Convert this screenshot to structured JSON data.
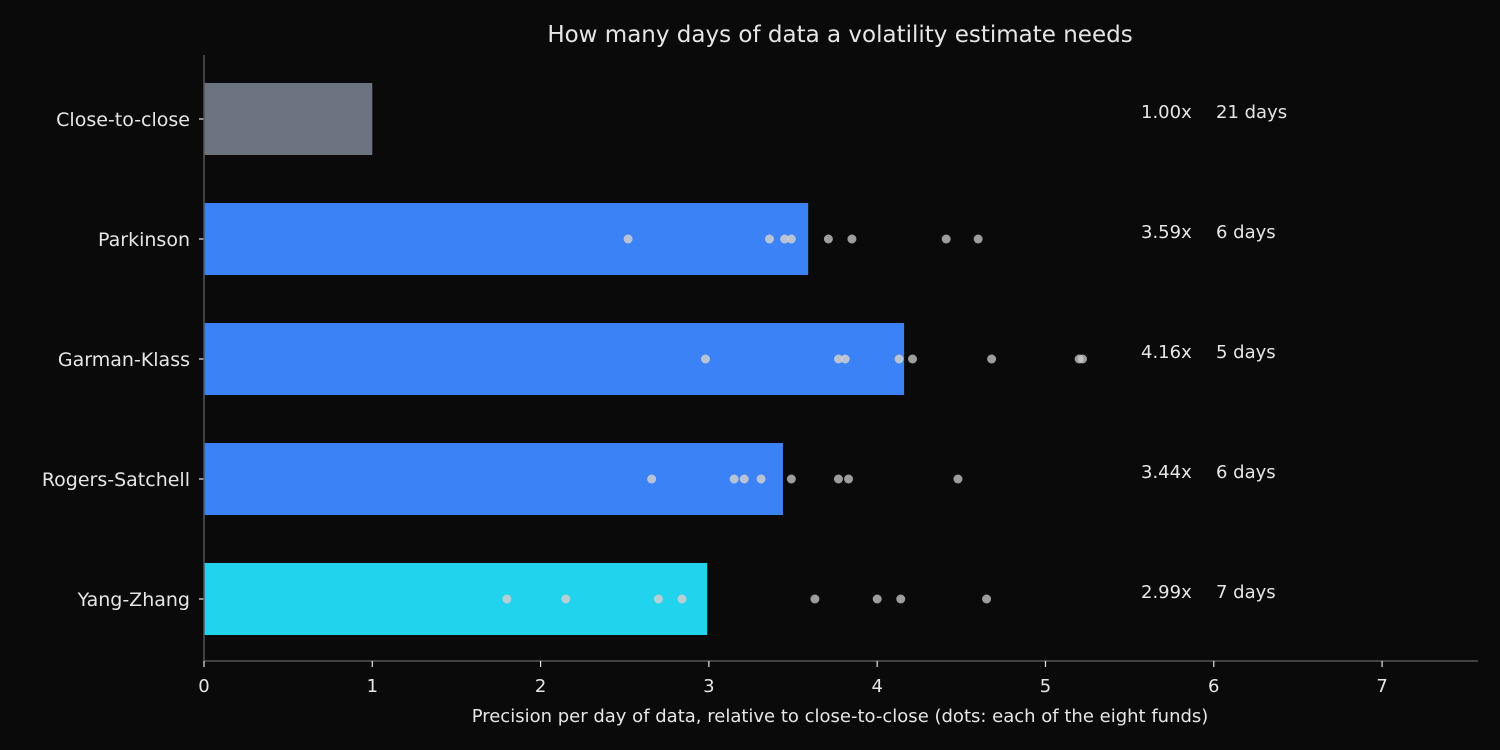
{
  "chart_data": {
    "type": "bar",
    "orientation": "horizontal",
    "title": "How many days of data a volatility estimate needs",
    "xlabel": "Precision per day of data, relative to close-to-close (dots: each of the eight funds)",
    "ylabel": "",
    "xlim": [
      0,
      7.57
    ],
    "x_ticks": [
      0,
      1,
      2,
      3,
      4,
      5,
      6,
      7
    ],
    "grid": false,
    "categories": [
      "Close-to-close",
      "Parkinson",
      "Garman-Klass",
      "Rogers-Satchell",
      "Yang-Zhang"
    ],
    "values": [
      1.0,
      3.59,
      4.16,
      3.44,
      2.99
    ],
    "value_labels": [
      "1.00x",
      "3.59x",
      "4.16x",
      "3.44x",
      "2.99x"
    ],
    "days_labels": [
      "21 days",
      "6 days",
      "5 days",
      "6 days",
      "7 days"
    ],
    "bar_colors": [
      "#6b7280",
      "#3b82f6",
      "#3b82f6",
      "#3b82f6",
      "#22d3ee"
    ],
    "fund_points": [
      [],
      [
        2.52,
        3.36,
        3.45,
        3.49,
        3.71,
        3.85,
        4.41,
        4.6
      ],
      [
        2.98,
        3.77,
        3.81,
        4.13,
        4.21,
        4.68,
        5.2,
        5.22
      ],
      [
        2.66,
        3.15,
        3.21,
        3.31,
        3.49,
        3.77,
        3.83,
        4.48
      ],
      [
        1.8,
        2.15,
        2.7,
        2.84,
        3.63,
        4.0,
        4.14,
        4.65
      ]
    ],
    "colors": {
      "background": "#0a0a0b",
      "text": "#e6e6e6",
      "axis": "#555555",
      "dot": "#cfcfcf"
    }
  }
}
